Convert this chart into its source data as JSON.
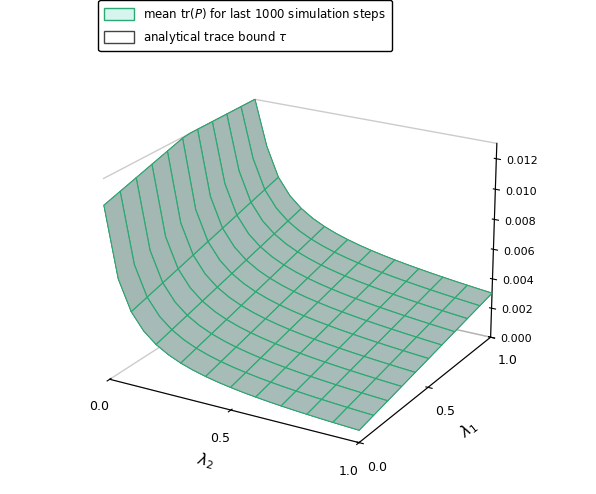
{
  "surface_color": "#d6f5ee",
  "edge_color": "#2aaa72",
  "surface_color2": "#ffffff",
  "edge_color2": "#444444",
  "zlim": [
    0,
    0.013
  ],
  "xlabel": "$\\lambda_2$",
  "ylabel": "$\\lambda_1$",
  "legend_label1": "mean tr$(P)$ for last 1000 simulation steps",
  "legend_label2": "analytical trace bound $\\tau$",
  "xticks": [
    0,
    0.5,
    1
  ],
  "yticks": [
    0,
    0.5,
    1
  ],
  "zticks": [
    0,
    0.002,
    0.004,
    0.006,
    0.008,
    0.01,
    0.012
  ],
  "elev": 22,
  "azim": -60,
  "n_grid": 21
}
